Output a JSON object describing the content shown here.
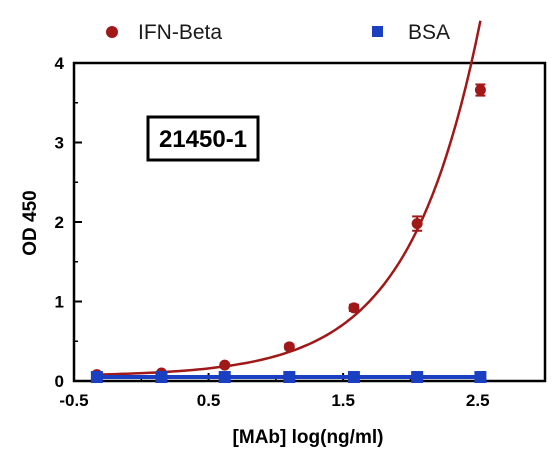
{
  "chart_data": {
    "type": "line",
    "xlabel": "[MAb] log(ng/ml)",
    "ylabel": "OD 450",
    "xlim": [
      -0.5,
      3.0
    ],
    "ylim": [
      0,
      4
    ],
    "x_ticks": [
      "-0.5",
      "0.5",
      "1.5",
      "2.5"
    ],
    "y_ticks": [
      "0",
      "1",
      "2",
      "3",
      "4"
    ],
    "annotation": "21450-1",
    "legend_position": "top",
    "series": [
      {
        "name": "IFN-Beta",
        "color": "#a01818",
        "marker": "circle",
        "fit_curve": true,
        "x": [
          -0.33,
          0.15,
          0.62,
          1.1,
          1.58,
          2.05,
          2.52
        ],
        "y": [
          0.08,
          0.1,
          0.2,
          0.43,
          0.92,
          1.98,
          3.66
        ],
        "err": [
          0.02,
          0.02,
          0.02,
          0.03,
          0.04,
          0.09,
          0.07
        ]
      },
      {
        "name": "BSA",
        "color": "#1a3fc0",
        "marker": "square",
        "fit_curve": false,
        "x": [
          -0.33,
          0.15,
          0.62,
          1.1,
          1.58,
          2.05,
          2.52
        ],
        "y": [
          0.05,
          0.05,
          0.05,
          0.05,
          0.05,
          0.05,
          0.05
        ]
      }
    ]
  }
}
